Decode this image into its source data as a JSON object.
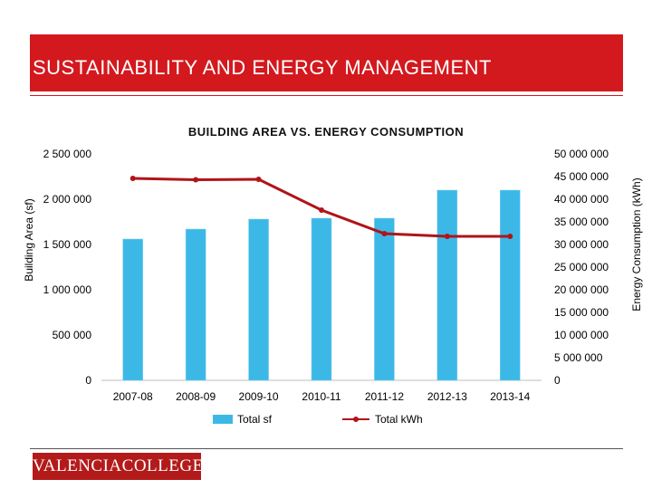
{
  "page": {
    "title": "SUSTAINABILITY AND ENERGY MANAGEMENT",
    "logo_text": "VALENCIACOLLEGE"
  },
  "chart_data": {
    "type": "bar",
    "title": "BUILDING AREA VS. ENERGY CONSUMPTION",
    "categories": [
      "2007-08",
      "2008-09",
      "2009-10",
      "2010-11",
      "2011-12",
      "2012-13",
      "2013-14"
    ],
    "ylabel": "Building Area (sf)",
    "y2label": "Energy Consumption (kWh)",
    "ylim": [
      0,
      2500000
    ],
    "y2lim": [
      0,
      50000000
    ],
    "yticks": [
      "2 500 000",
      "2 000 000",
      "1 500 000",
      "1 000 000",
      "500 000",
      "0"
    ],
    "y2ticks": [
      "50 000 000",
      "45 000 000",
      "40 000 000",
      "35 000 000",
      "30 000 000",
      "25 000 000",
      "20 000 000",
      "15 000 000",
      "10 000 000",
      "5 000 000",
      "0"
    ],
    "series": [
      {
        "name": "Total sf",
        "axis": "left",
        "kind": "bar",
        "color": "#3cb8e6",
        "values": [
          1560000,
          1670000,
          1780000,
          1790000,
          1790000,
          2100000,
          2100000
        ]
      },
      {
        "name": "Total kWh",
        "axis": "right",
        "kind": "line",
        "color": "#b0141a",
        "values": [
          44600000,
          44300000,
          44400000,
          37600000,
          32400000,
          31800000,
          31800000
        ]
      }
    ],
    "grid": false,
    "legend": "bottom"
  }
}
